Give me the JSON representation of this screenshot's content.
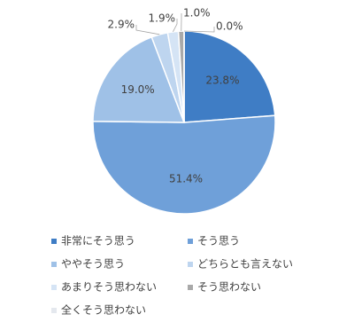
{
  "chart_data": {
    "type": "pie",
    "categories": [
      "非常にそう思う",
      "そう思う",
      "ややそう思う",
      "どちらとも言えない",
      "あまりそう思わない",
      "そう思わない",
      "全くそう思わない"
    ],
    "values": [
      23.8,
      51.4,
      19.0,
      2.9,
      1.9,
      1.0,
      0.0
    ],
    "value_labels": [
      "23.8%",
      "51.4%",
      "19.0%",
      "2.9%",
      "1.9%",
      "1.0%",
      "0.0%"
    ],
    "colors": [
      "#3f7dc5",
      "#6fa0d9",
      "#9fc1e7",
      "#bed5ef",
      "#d5e4f5",
      "#a9a9a9",
      "#e4e8ee"
    ]
  }
}
